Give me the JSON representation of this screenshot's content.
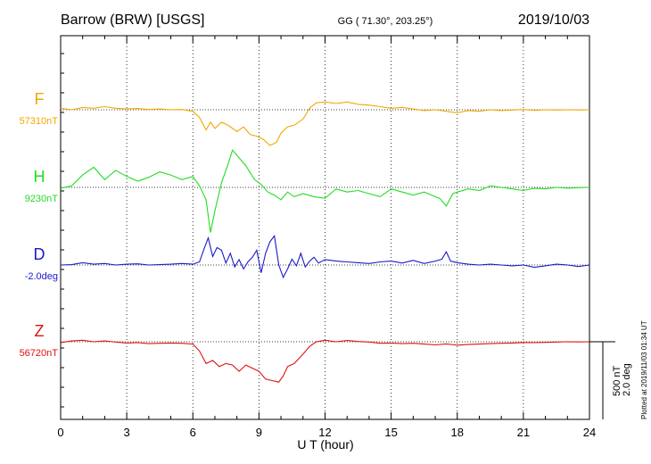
{
  "header": {
    "station": "Barrow (BRW)  [USGS]",
    "coords": "GG ( 71.30°, 203.25°)",
    "date": "2019/10/03"
  },
  "side": {
    "plotted": "Plotted at 2019/11/03 01:34 UT",
    "scale_nt": "500 nT",
    "scale_deg": "2.0 deg"
  },
  "chart_data": {
    "type": "line",
    "title": "Barrow (BRW)  [USGS]",
    "xlabel": "U T (hour)",
    "xlim": [
      0,
      24
    ],
    "xticks": [
      "0",
      "3",
      "6",
      "9",
      "12",
      "15",
      "18",
      "21",
      "24"
    ],
    "grid": true,
    "series": [
      {
        "name": "F",
        "baseline_label": "57310nT",
        "color": "#f0a800",
        "baseline": 57310,
        "x": [
          0,
          0.5,
          1,
          1.5,
          2,
          2.5,
          3,
          3.5,
          4,
          4.5,
          5,
          5.5,
          6,
          6.3,
          6.6,
          6.8,
          7,
          7.3,
          7.6,
          8,
          8.3,
          8.6,
          8.9,
          9.2,
          9.5,
          9.8,
          10,
          10.3,
          10.6,
          11,
          11.3,
          11.6,
          12,
          12.5,
          13,
          13.5,
          14,
          14.5,
          15,
          15.5,
          16,
          16.5,
          17,
          17.5,
          18,
          18.5,
          19,
          19.5,
          20,
          20.5,
          21,
          21.5,
          22,
          22.5,
          23,
          23.5,
          24
        ],
        "values": [
          57320,
          57310,
          57325,
          57320,
          57330,
          57320,
          57315,
          57318,
          57312,
          57315,
          57310,
          57312,
          57300,
          57260,
          57180,
          57230,
          57190,
          57230,
          57210,
          57170,
          57200,
          57150,
          57140,
          57120,
          57080,
          57100,
          57160,
          57200,
          57210,
          57250,
          57320,
          57355,
          57360,
          57350,
          57360,
          57345,
          57340,
          57330,
          57320,
          57325,
          57315,
          57305,
          57310,
          57300,
          57290,
          57305,
          57300,
          57310,
          57305,
          57308,
          57312,
          57306,
          57310,
          57308,
          57310,
          57309,
          57310
        ]
      },
      {
        "name": "H",
        "baseline_label": "9230nT",
        "color": "#22dd22",
        "baseline": 9230,
        "x": [
          0,
          0.5,
          1,
          1.5,
          2,
          2.5,
          3,
          3.5,
          4,
          4.5,
          5,
          5.5,
          6,
          6.3,
          6.6,
          6.8,
          7,
          7.3,
          7.6,
          7.8,
          8.1,
          8.4,
          8.8,
          9.1,
          9.4,
          9.7,
          10,
          10.3,
          10.6,
          11,
          11.5,
          12,
          12.5,
          13,
          13.5,
          14,
          14.5,
          15,
          15.5,
          16,
          16.5,
          17,
          17.2,
          17.5,
          17.8,
          18,
          18.5,
          19,
          19.5,
          20,
          20.5,
          21,
          21.5,
          22,
          22.5,
          23,
          23.5,
          24
        ],
        "values": [
          9225,
          9240,
          9310,
          9360,
          9280,
          9340,
          9300,
          9270,
          9295,
          9330,
          9310,
          9280,
          9300,
          9240,
          9150,
          8940,
          9080,
          9260,
          9380,
          9470,
          9420,
          9370,
          9280,
          9250,
          9200,
          9180,
          9150,
          9200,
          9170,
          9190,
          9170,
          9160,
          9220,
          9200,
          9210,
          9190,
          9170,
          9220,
          9200,
          9180,
          9200,
          9170,
          9160,
          9110,
          9190,
          9200,
          9220,
          9210,
          9240,
          9230,
          9220,
          9210,
          9225,
          9220,
          9230,
          9225,
          9228,
          9230
        ]
      },
      {
        "name": "D",
        "baseline_label": "-2.0deg",
        "color": "#1a1acc",
        "baseline": -2.0,
        "x": [
          0,
          0.5,
          1,
          1.5,
          2,
          2.5,
          3,
          3.5,
          4,
          4.5,
          5,
          5.5,
          6,
          6.3,
          6.5,
          6.7,
          6.9,
          7.1,
          7.3,
          7.5,
          7.7,
          7.9,
          8.1,
          8.3,
          8.5,
          8.7,
          8.9,
          9.1,
          9.3,
          9.5,
          9.7,
          9.9,
          10.1,
          10.3,
          10.5,
          10.7,
          10.9,
          11.1,
          11.3,
          11.5,
          11.7,
          12,
          12.5,
          13,
          13.5,
          14,
          14.5,
          15,
          15.5,
          16,
          16.5,
          17,
          17.3,
          17.5,
          17.7,
          18,
          18.5,
          19,
          19.5,
          20,
          20.5,
          21,
          21.5,
          22,
          22.5,
          23,
          23.5,
          24
        ],
        "values": [
          -2.0,
          -1.99,
          -1.94,
          -1.98,
          -1.96,
          -2.0,
          -1.98,
          -1.97,
          -2.0,
          -1.99,
          -1.98,
          -1.96,
          -1.98,
          -1.92,
          -1.6,
          -1.3,
          -1.78,
          -1.55,
          -1.62,
          -1.95,
          -1.7,
          -2.05,
          -1.86,
          -2.1,
          -1.92,
          -1.8,
          -1.62,
          -2.2,
          -1.7,
          -1.4,
          -1.25,
          -2.0,
          -2.32,
          -2.1,
          -1.85,
          -2.02,
          -1.7,
          -2.05,
          -1.9,
          -1.8,
          -1.95,
          -1.86,
          -1.9,
          -1.92,
          -1.94,
          -1.96,
          -1.92,
          -1.9,
          -1.95,
          -1.88,
          -1.96,
          -1.9,
          -1.85,
          -1.66,
          -1.9,
          -1.94,
          -1.98,
          -2.0,
          -1.98,
          -2.0,
          -2.02,
          -2.0,
          -2.06,
          -2.02,
          -1.98,
          -2.0,
          -2.04,
          -2.0
        ]
      },
      {
        "name": "Z",
        "baseline_label": "56720nT",
        "color": "#dd1111",
        "baseline": 56720,
        "x": [
          0,
          0.5,
          1,
          1.5,
          2,
          2.5,
          3,
          3.5,
          4,
          4.5,
          5,
          5.5,
          6,
          6.3,
          6.6,
          6.9,
          7.2,
          7.5,
          7.8,
          8.1,
          8.4,
          8.7,
          9,
          9.3,
          9.6,
          9.9,
          10.1,
          10.3,
          10.6,
          11,
          11.3,
          11.6,
          12,
          12.5,
          13,
          13.5,
          14,
          14.5,
          15,
          15.5,
          16,
          16.5,
          17,
          17.5,
          18,
          18.5,
          19,
          19.5,
          20,
          20.5,
          21,
          21.5,
          22,
          22.5,
          23,
          23.5,
          24
        ],
        "values": [
          56715,
          56725,
          56730,
          56720,
          56725,
          56718,
          56712,
          56714,
          56708,
          56710,
          56712,
          56710,
          56705,
          56660,
          56580,
          56600,
          56560,
          56580,
          56570,
          56530,
          56570,
          56550,
          56530,
          56480,
          56470,
          56460,
          56500,
          56560,
          56580,
          56640,
          56690,
          56720,
          56730,
          56720,
          56728,
          56722,
          56718,
          56710,
          56712,
          56708,
          56710,
          56705,
          56700,
          56706,
          56698,
          56702,
          56705,
          56708,
          56710,
          56712,
          56715,
          56714,
          56716,
          56718,
          56720,
          56719,
          56720
        ]
      }
    ]
  }
}
